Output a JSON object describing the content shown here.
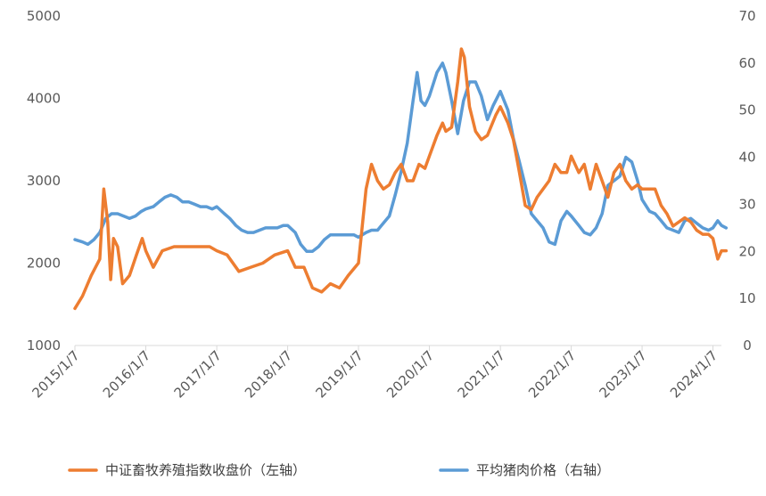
{
  "chart_data": {
    "type": "line",
    "title": "",
    "xlabel": "",
    "ylabel_left": "",
    "ylabel_right": "",
    "x_tick_labels": [
      "2015/1/7",
      "2016/1/7",
      "2017/1/7",
      "2018/1/7",
      "2019/1/7",
      "2020/1/7",
      "2021/1/7",
      "2022/1/7",
      "2023/1/7",
      "2024/1/7"
    ],
    "y_left": {
      "min": 1000,
      "max": 5000,
      "ticks": [
        1000,
        2000,
        3000,
        4000,
        5000
      ]
    },
    "y_right": {
      "min": 0,
      "max": 70,
      "ticks": [
        0,
        10,
        20,
        30,
        40,
        50,
        60,
        70
      ]
    },
    "grid": false,
    "legend_position": "bottom",
    "series": [
      {
        "name": "中证畜牧养殖指数收盘价（左轴）",
        "axis": "left",
        "color": "#ED7D31",
        "points": [
          [
            "2015-01-07",
            1450
          ],
          [
            "2015-02-15",
            1600
          ],
          [
            "2015-04-01",
            1850
          ],
          [
            "2015-05-15",
            2050
          ],
          [
            "2015-06-05",
            2900
          ],
          [
            "2015-06-25",
            2500
          ],
          [
            "2015-07-10",
            1800
          ],
          [
            "2015-07-25",
            2300
          ],
          [
            "2015-08-15",
            2200
          ],
          [
            "2015-09-10",
            1750
          ],
          [
            "2015-10-15",
            1850
          ],
          [
            "2015-11-20",
            2100
          ],
          [
            "2015-12-20",
            2300
          ],
          [
            "2016-01-07",
            2150
          ],
          [
            "2016-02-15",
            1950
          ],
          [
            "2016-04-01",
            2150
          ],
          [
            "2016-06-01",
            2200
          ],
          [
            "2016-08-01",
            2200
          ],
          [
            "2016-10-01",
            2200
          ],
          [
            "2016-12-01",
            2200
          ],
          [
            "2017-01-07",
            2150
          ],
          [
            "2017-03-01",
            2100
          ],
          [
            "2017-05-01",
            1900
          ],
          [
            "2017-07-01",
            1950
          ],
          [
            "2017-09-01",
            2000
          ],
          [
            "2017-11-01",
            2100
          ],
          [
            "2018-01-07",
            2150
          ],
          [
            "2018-02-15",
            1950
          ],
          [
            "2018-04-01",
            1950
          ],
          [
            "2018-05-15",
            1700
          ],
          [
            "2018-07-01",
            1650
          ],
          [
            "2018-08-15",
            1750
          ],
          [
            "2018-10-01",
            1700
          ],
          [
            "2018-11-15",
            1850
          ],
          [
            "2019-01-07",
            2000
          ],
          [
            "2019-02-15",
            2900
          ],
          [
            "2019-03-15",
            3200
          ],
          [
            "2019-04-15",
            3000
          ],
          [
            "2019-05-15",
            2900
          ],
          [
            "2019-06-15",
            2950
          ],
          [
            "2019-07-15",
            3100
          ],
          [
            "2019-08-15",
            3200
          ],
          [
            "2019-09-15",
            3000
          ],
          [
            "2019-10-15",
            3000
          ],
          [
            "2019-11-15",
            3200
          ],
          [
            "2019-12-15",
            3150
          ],
          [
            "2020-01-07",
            3300
          ],
          [
            "2020-02-15",
            3550
          ],
          [
            "2020-03-15",
            3700
          ],
          [
            "2020-04-01",
            3600
          ],
          [
            "2020-05-01",
            3650
          ],
          [
            "2020-06-01",
            4200
          ],
          [
            "2020-06-20",
            4600
          ],
          [
            "2020-07-05",
            4500
          ],
          [
            "2020-08-01",
            3900
          ],
          [
            "2020-09-01",
            3600
          ],
          [
            "2020-10-01",
            3500
          ],
          [
            "2020-11-01",
            3550
          ],
          [
            "2020-12-15",
            3800
          ],
          [
            "2021-01-07",
            3900
          ],
          [
            "2021-02-15",
            3700
          ],
          [
            "2021-03-15",
            3500
          ],
          [
            "2021-04-15",
            3100
          ],
          [
            "2021-05-15",
            2700
          ],
          [
            "2021-06-15",
            2650
          ],
          [
            "2021-07-15",
            2800
          ],
          [
            "2021-08-15",
            2900
          ],
          [
            "2021-09-15",
            3000
          ],
          [
            "2021-10-15",
            3200
          ],
          [
            "2021-11-15",
            3100
          ],
          [
            "2021-12-15",
            3100
          ],
          [
            "2022-01-07",
            3300
          ],
          [
            "2022-02-15",
            3100
          ],
          [
            "2022-03-15",
            3200
          ],
          [
            "2022-04-15",
            2900
          ],
          [
            "2022-05-15",
            3200
          ],
          [
            "2022-06-15",
            3000
          ],
          [
            "2022-07-15",
            2800
          ],
          [
            "2022-08-15",
            3100
          ],
          [
            "2022-09-15",
            3200
          ],
          [
            "2022-10-15",
            3000
          ],
          [
            "2022-11-15",
            2900
          ],
          [
            "2022-12-15",
            2950
          ],
          [
            "2023-01-07",
            2900
          ],
          [
            "2023-02-15",
            2900
          ],
          [
            "2023-03-15",
            2900
          ],
          [
            "2023-04-15",
            2700
          ],
          [
            "2023-05-15",
            2600
          ],
          [
            "2023-06-15",
            2450
          ],
          [
            "2023-07-15",
            2500
          ],
          [
            "2023-08-15",
            2550
          ],
          [
            "2023-09-15",
            2500
          ],
          [
            "2023-10-15",
            2400
          ],
          [
            "2023-11-15",
            2350
          ],
          [
            "2023-12-15",
            2350
          ],
          [
            "2024-01-07",
            2300
          ],
          [
            "2024-02-01",
            2050
          ],
          [
            "2024-02-20",
            2150
          ],
          [
            "2024-03-15",
            2150
          ]
        ]
      },
      {
        "name": "平均猪肉价格（右轴）",
        "axis": "right",
        "color": "#5B9BD5",
        "points": [
          [
            "2015-01-07",
            22.5
          ],
          [
            "2015-02-15",
            22.0
          ],
          [
            "2015-03-15",
            21.5
          ],
          [
            "2015-04-15",
            22.5
          ],
          [
            "2015-05-15",
            24.0
          ],
          [
            "2015-06-15",
            27.0
          ],
          [
            "2015-07-15",
            28.0
          ],
          [
            "2015-08-15",
            28.0
          ],
          [
            "2015-09-15",
            27.5
          ],
          [
            "2015-10-15",
            27.0
          ],
          [
            "2015-11-15",
            27.5
          ],
          [
            "2015-12-15",
            28.5
          ],
          [
            "2016-01-07",
            29.0
          ],
          [
            "2016-02-15",
            29.5
          ],
          [
            "2016-03-15",
            30.5
          ],
          [
            "2016-04-15",
            31.5
          ],
          [
            "2016-05-15",
            32.0
          ],
          [
            "2016-06-15",
            31.5
          ],
          [
            "2016-07-15",
            30.5
          ],
          [
            "2016-08-15",
            30.5
          ],
          [
            "2016-09-15",
            30.0
          ],
          [
            "2016-10-15",
            29.5
          ],
          [
            "2016-11-15",
            29.5
          ],
          [
            "2016-12-15",
            29.0
          ],
          [
            "2017-01-07",
            29.5
          ],
          [
            "2017-02-15",
            28.0
          ],
          [
            "2017-03-15",
            27.0
          ],
          [
            "2017-04-15",
            25.5
          ],
          [
            "2017-05-15",
            24.5
          ],
          [
            "2017-06-15",
            24.0
          ],
          [
            "2017-07-15",
            24.0
          ],
          [
            "2017-08-15",
            24.5
          ],
          [
            "2017-09-15",
            25.0
          ],
          [
            "2017-10-15",
            25.0
          ],
          [
            "2017-11-15",
            25.0
          ],
          [
            "2017-12-15",
            25.5
          ],
          [
            "2018-01-07",
            25.5
          ],
          [
            "2018-02-15",
            24.0
          ],
          [
            "2018-03-15",
            21.5
          ],
          [
            "2018-04-15",
            20.0
          ],
          [
            "2018-05-15",
            20.0
          ],
          [
            "2018-06-15",
            21.0
          ],
          [
            "2018-07-15",
            22.5
          ],
          [
            "2018-08-15",
            23.5
          ],
          [
            "2018-09-15",
            23.5
          ],
          [
            "2018-10-15",
            23.5
          ],
          [
            "2018-11-15",
            23.5
          ],
          [
            "2018-12-15",
            23.5
          ],
          [
            "2019-01-07",
            23.0
          ],
          [
            "2019-02-15",
            24.0
          ],
          [
            "2019-03-15",
            24.5
          ],
          [
            "2019-04-15",
            24.5
          ],
          [
            "2019-05-15",
            26.0
          ],
          [
            "2019-06-15",
            27.5
          ],
          [
            "2019-07-15",
            32.0
          ],
          [
            "2019-08-15",
            37.0
          ],
          [
            "2019-09-15",
            43.0
          ],
          [
            "2019-10-15",
            52.0
          ],
          [
            "2019-11-05",
            58.0
          ],
          [
            "2019-11-25",
            52.0
          ],
          [
            "2019-12-15",
            51.0
          ],
          [
            "2020-01-07",
            53.0
          ],
          [
            "2020-02-15",
            58.0
          ],
          [
            "2020-03-15",
            60.0
          ],
          [
            "2020-04-01",
            58.0
          ],
          [
            "2020-05-01",
            52.0
          ],
          [
            "2020-06-01",
            45.0
          ],
          [
            "2020-07-01",
            52.0
          ],
          [
            "2020-08-01",
            56.0
          ],
          [
            "2020-09-01",
            56.0
          ],
          [
            "2020-10-01",
            53.0
          ],
          [
            "2020-11-01",
            48.0
          ],
          [
            "2020-12-01",
            51.0
          ],
          [
            "2021-01-07",
            54.0
          ],
          [
            "2021-02-15",
            50.0
          ],
          [
            "2021-03-15",
            44.0
          ],
          [
            "2021-04-15",
            39.0
          ],
          [
            "2021-05-15",
            34.0
          ],
          [
            "2021-06-15",
            28.0
          ],
          [
            "2021-07-15",
            26.5
          ],
          [
            "2021-08-15",
            25.0
          ],
          [
            "2021-09-15",
            22.0
          ],
          [
            "2021-10-15",
            21.5
          ],
          [
            "2021-11-15",
            26.5
          ],
          [
            "2021-12-15",
            28.5
          ],
          [
            "2022-01-07",
            27.5
          ],
          [
            "2022-02-15",
            25.5
          ],
          [
            "2022-03-15",
            24.0
          ],
          [
            "2022-04-15",
            23.5
          ],
          [
            "2022-05-15",
            25.0
          ],
          [
            "2022-06-15",
            28.0
          ],
          [
            "2022-07-15",
            34.0
          ],
          [
            "2022-08-15",
            35.0
          ],
          [
            "2022-09-15",
            36.0
          ],
          [
            "2022-10-15",
            40.0
          ],
          [
            "2022-11-15",
            39.0
          ],
          [
            "2022-12-15",
            35.0
          ],
          [
            "2023-01-07",
            31.0
          ],
          [
            "2023-02-15",
            28.5
          ],
          [
            "2023-03-15",
            28.0
          ],
          [
            "2023-04-15",
            26.5
          ],
          [
            "2023-05-15",
            25.0
          ],
          [
            "2023-06-15",
            24.5
          ],
          [
            "2023-07-15",
            24.0
          ],
          [
            "2023-08-15",
            26.5
          ],
          [
            "2023-09-15",
            27.0
          ],
          [
            "2023-10-15",
            26.0
          ],
          [
            "2023-11-15",
            25.0
          ],
          [
            "2023-12-15",
            24.5
          ],
          [
            "2024-01-07",
            25.0
          ],
          [
            "2024-02-01",
            26.5
          ],
          [
            "2024-02-20",
            25.5
          ],
          [
            "2024-03-15",
            25.0
          ]
        ]
      }
    ]
  }
}
